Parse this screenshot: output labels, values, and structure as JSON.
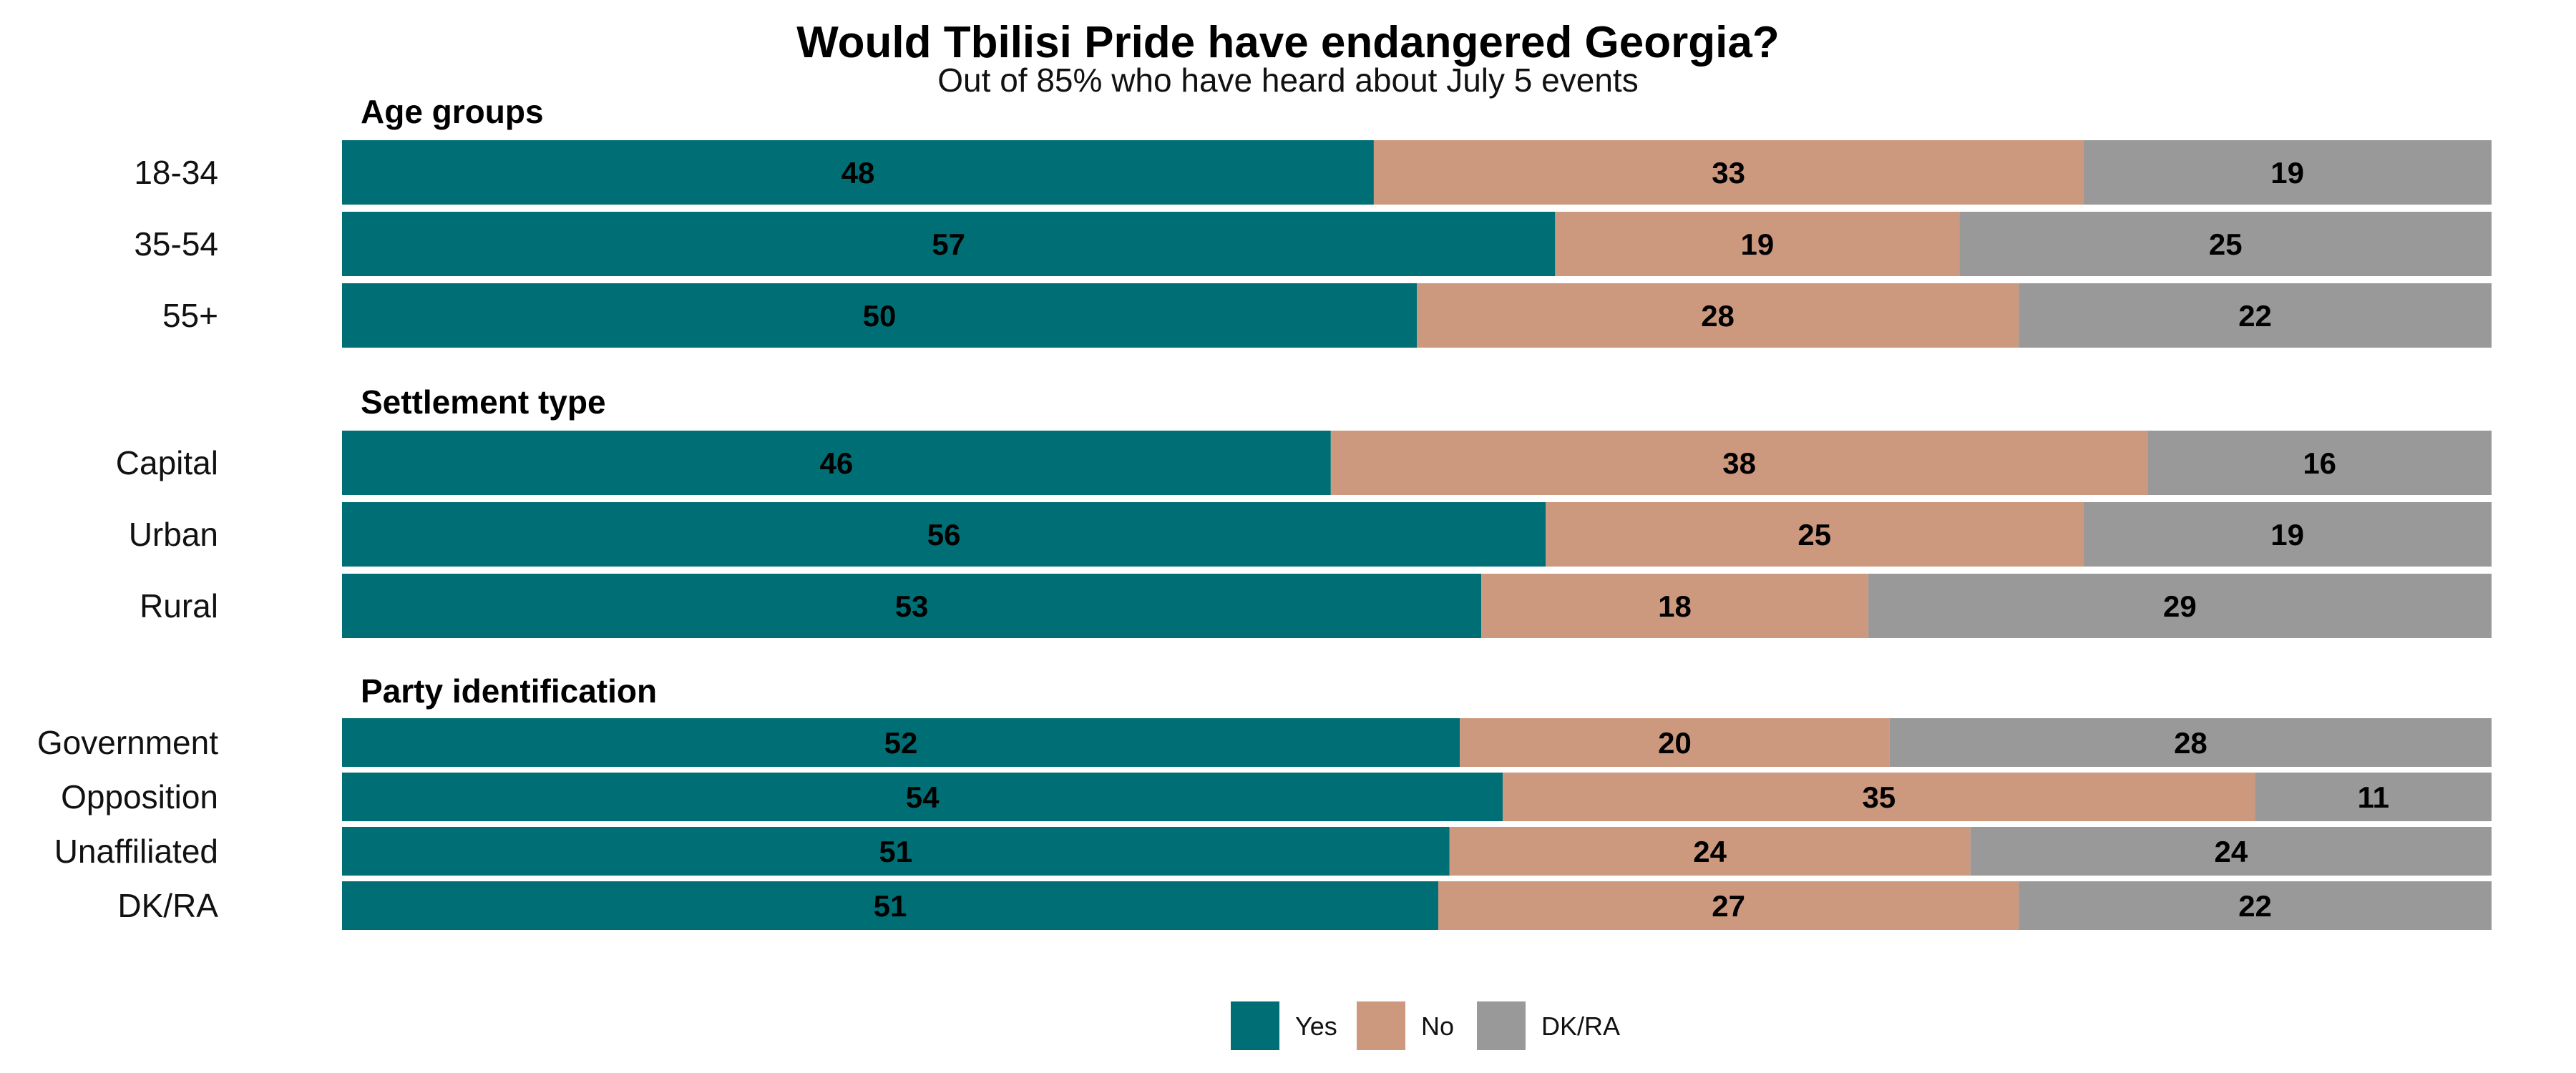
{
  "chart_data": {
    "type": "bar",
    "orientation": "horizontal",
    "stacked": true,
    "title": "Would Tbilisi Pride have endangered Georgia?",
    "subtitle": "Out of 85% who have heard about July 5 events",
    "xlim": [
      0,
      100
    ],
    "grid": false,
    "legend_position": "bottom",
    "series": [
      {
        "name": "Yes",
        "color": "#006f75"
      },
      {
        "name": "No",
        "color": "#cc987e"
      },
      {
        "name": "DK/RA",
        "color": "#999999"
      }
    ],
    "groups": [
      {
        "title": "Age groups",
        "rows": [
          {
            "label": "18-34",
            "values": [
              48,
              33,
              19
            ]
          },
          {
            "label": "35-54",
            "values": [
              57,
              19,
              25
            ]
          },
          {
            "label": "55+",
            "values": [
              50,
              28,
              22
            ]
          }
        ]
      },
      {
        "title": "Settlement type",
        "rows": [
          {
            "label": "Capital",
            "values": [
              46,
              38,
              16
            ]
          },
          {
            "label": "Urban",
            "values": [
              56,
              25,
              19
            ]
          },
          {
            "label": "Rural",
            "values": [
              53,
              18,
              29
            ]
          }
        ]
      },
      {
        "title": "Party identification",
        "rows": [
          {
            "label": "Government",
            "values": [
              52,
              20,
              28
            ]
          },
          {
            "label": "Opposition",
            "values": [
              54,
              35,
              11
            ]
          },
          {
            "label": "Unaffiliated",
            "values": [
              51,
              24,
              24
            ]
          },
          {
            "label": "DK/RA",
            "values": [
              51,
              27,
              22
            ]
          }
        ]
      }
    ]
  }
}
